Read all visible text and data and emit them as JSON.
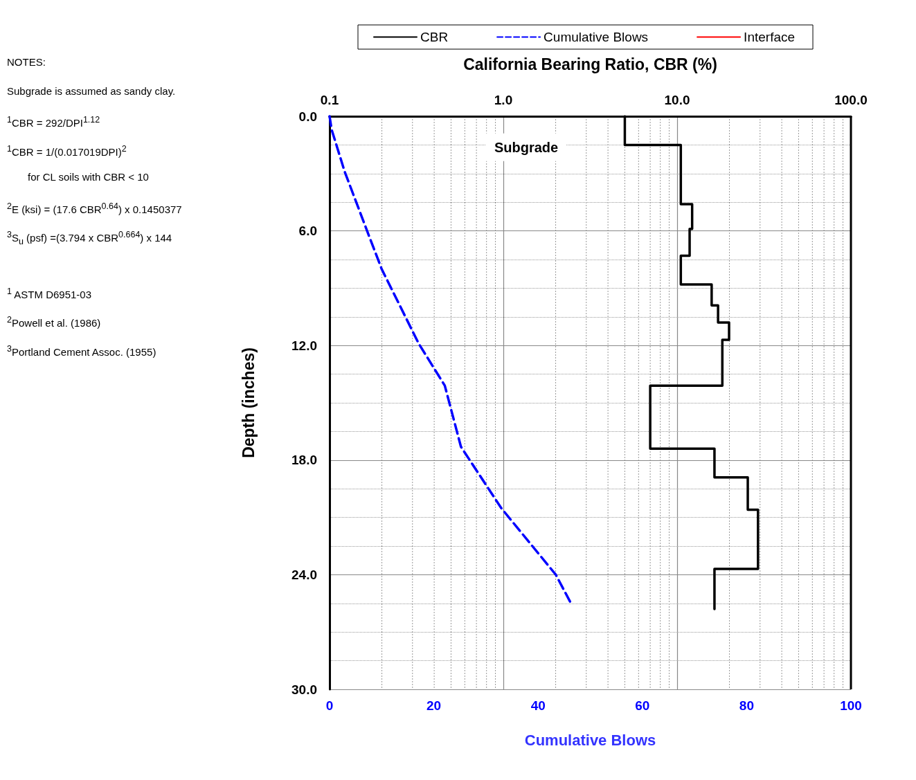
{
  "chart_data": {
    "type": "line",
    "x2label": "California Bearing Ratio, CBR (%)",
    "xlabel": "Cumulative Blows",
    "ylabel": "Depth (inches)",
    "annotations": [
      "Subgrade",
      "NOTES:",
      "Subgrade is assumed as sandy clay.",
      "$^{1}$CBR = 292/DPI$^{1.12}$",
      "$^{1}$CBR = 1/(0.017019DPI)$^{2}$",
      "for CL soils with CBR < 10",
      "$^{2}$E (ksi) = (17.6 CBR$^{0.64}$) x 0.1450377",
      "$^{3}$S$_{u}$ (psf) =(3.794 x CBR$^{0.664}$) x 144",
      "$^{1}$ ASTM D6951-03",
      "$^{2}$Powell et al. (1986)",
      "$^{3}$Portland Cement Assoc. (1955)"
    ],
    "series": [
      {
        "name": "CBR",
        "color": "#000000",
        "axis": "x2",
        "line_style": "solid",
        "x": [
          5.0,
          5.0,
          10.5,
          10.5,
          12.2,
          12.2,
          11.8,
          11.8,
          10.5,
          10.5,
          15.8,
          15.8,
          17.2,
          17.2,
          19.9,
          19.9,
          18.2,
          18.2,
          7.0,
          7.0,
          16.4,
          16.4,
          25.5,
          25.5,
          29.2,
          29.2,
          16.4,
          16.4
        ],
        "values": [
          0,
          1.5,
          1.5,
          4.6,
          4.6,
          5.9,
          5.9,
          7.3,
          7.3,
          8.8,
          8.8,
          9.9,
          9.9,
          10.8,
          10.8,
          11.7,
          11.7,
          14.1,
          14.1,
          17.4,
          17.4,
          18.9,
          18.9,
          20.6,
          20.6,
          23.7,
          23.7,
          25.8
        ]
      },
      {
        "name": "Cumulative Blows",
        "color": "#0000ff",
        "line_style": "dashed",
        "x": [
          0,
          0.4,
          2.9,
          7.2,
          10.0,
          17.1,
          22.1,
          25.2,
          32.9,
          43.4,
          46.5
        ],
        "values": [
          0,
          0.7,
          2.9,
          6.0,
          8.0,
          11.9,
          14.1,
          17.3,
          20.5,
          24.0,
          25.6
        ]
      },
      {
        "name": "Interface",
        "color": "#ff0000",
        "line_style": "solid"
      }
    ],
    "ylim": [
      30,
      0
    ],
    "yticks": [
      {
        "value": 0,
        "label": "0.0"
      },
      {
        "value": 6,
        "label": "6.0"
      },
      {
        "value": 12,
        "label": "12.0"
      },
      {
        "value": 18,
        "label": "18.0"
      },
      {
        "value": 24,
        "label": "24.0"
      },
      {
        "value": 30,
        "label": "30.0"
      }
    ],
    "xlim": [
      0,
      100
    ],
    "xticks": [
      0,
      20,
      40,
      60,
      80,
      100
    ],
    "x2lim": [
      0.1,
      100
    ],
    "x2ticks": [
      {
        "value": 0.1,
        "label": "0.1"
      },
      {
        "value": 1,
        "label": "1.0"
      },
      {
        "value": 10,
        "label": "10.0"
      },
      {
        "value": 100,
        "label": "100.0"
      }
    ],
    "log": "x2",
    "grid": true,
    "legend": "top",
    "marker": "none"
  }
}
